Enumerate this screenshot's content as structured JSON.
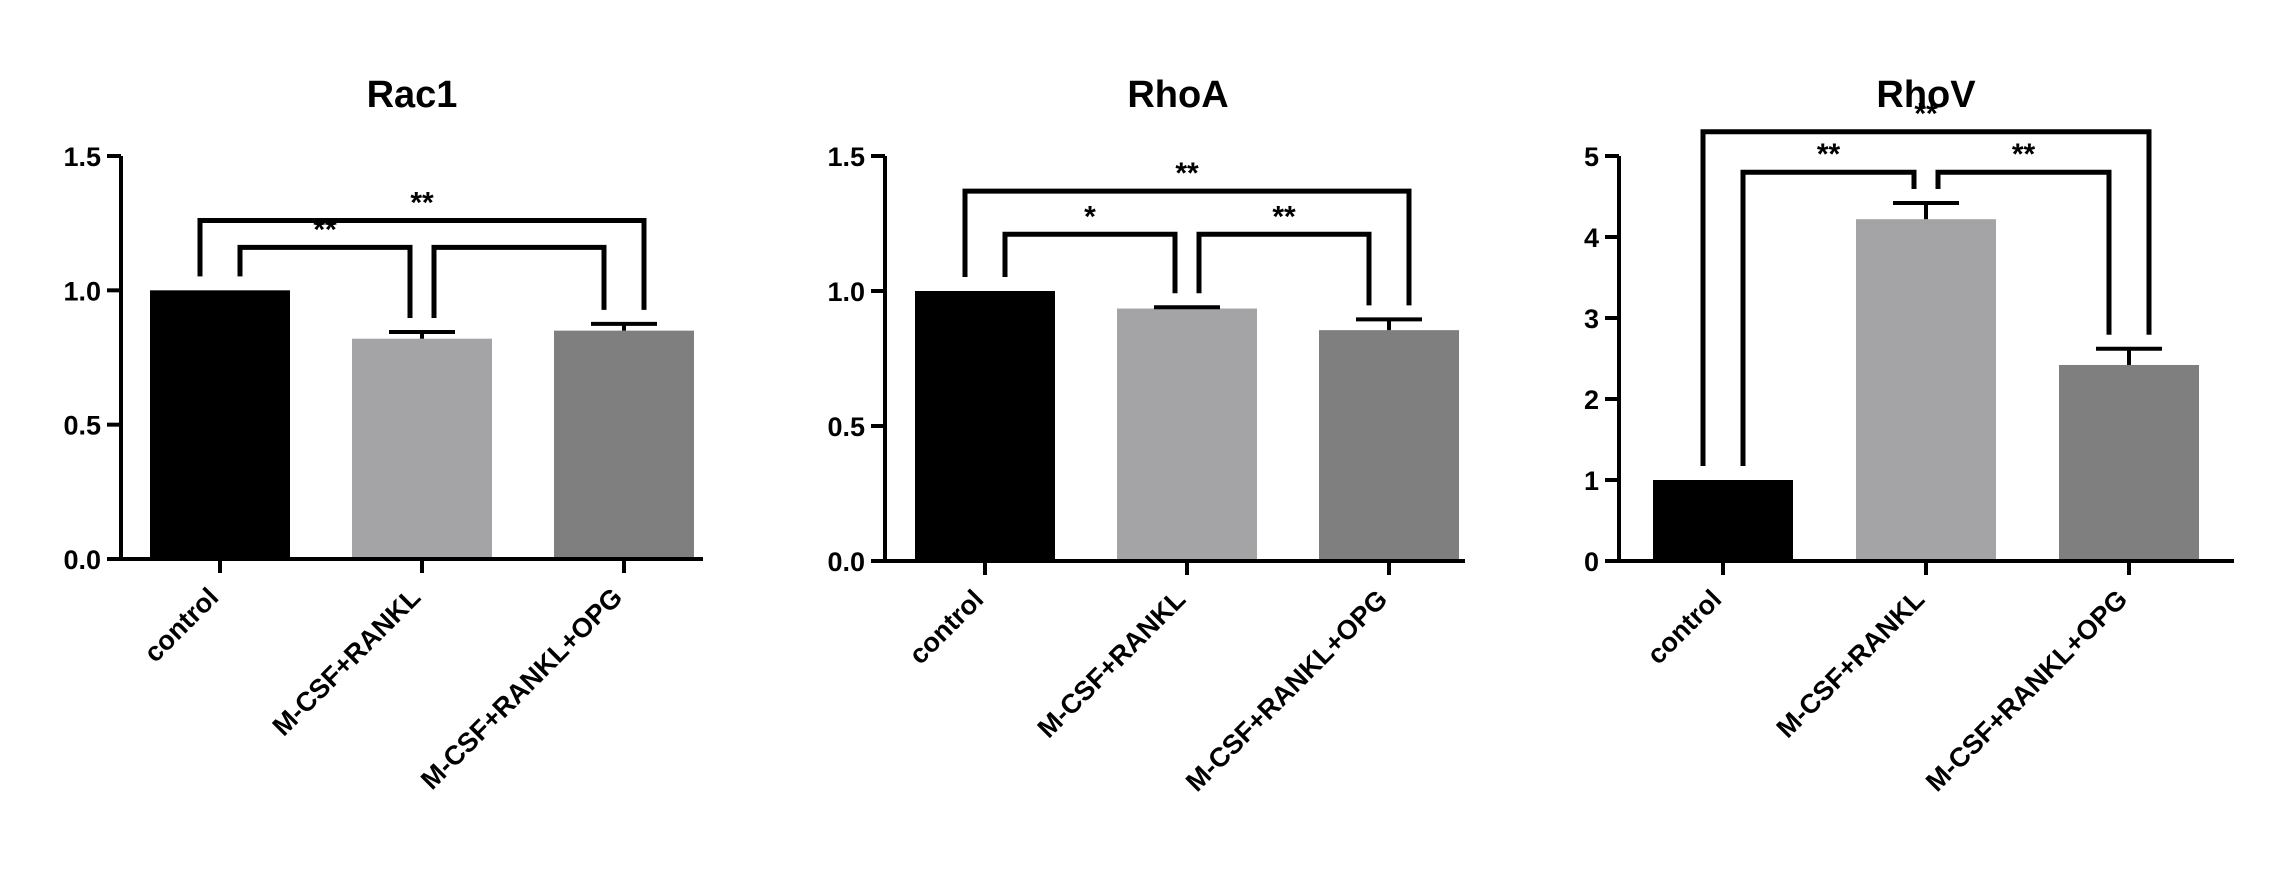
{
  "chart_data": [
    {
      "type": "bar",
      "title": "Rac1",
      "xlabel": "",
      "ylabel": "",
      "categories": [
        "control",
        "M-CSF+RANKL",
        "M-CSF+RANKL+OPG"
      ],
      "values": [
        1.0,
        0.82,
        0.85
      ],
      "errors": [
        0,
        0.025,
        0.025
      ],
      "colors": [
        "#000000",
        "#a4a4a7",
        "#7f7f7f"
      ],
      "ylim": [
        0,
        1.5
      ],
      "yticks": [
        "0.0",
        "0.5",
        "1.0",
        "1.5"
      ],
      "tick_values": [
        0,
        0.5,
        1.0,
        1.5
      ],
      "significance": [
        {
          "from": 0,
          "to": 1,
          "y": 1.16,
          "label": "**"
        },
        {
          "from": 1,
          "to": 2,
          "y": 1.16,
          "label": ""
        },
        {
          "from": 0,
          "to": 2,
          "y": 1.26,
          "label": "**"
        }
      ]
    },
    {
      "type": "bar",
      "title": "RhoA",
      "xlabel": "",
      "ylabel": "",
      "categories": [
        "control",
        "M-CSF+RANKL",
        "M-CSF+RANKL+OPG"
      ],
      "values": [
        1.0,
        0.935,
        0.855
      ],
      "errors": [
        0,
        0.005,
        0.04
      ],
      "colors": [
        "#000000",
        "#a4a4a7",
        "#7f7f7f"
      ],
      "ylim": [
        0,
        1.5
      ],
      "yticks": [
        "0.0",
        "0.5",
        "1.0",
        "1.5"
      ],
      "tick_values": [
        0,
        0.5,
        1.0,
        1.5
      ],
      "significance": [
        {
          "from": 0,
          "to": 1,
          "y": 1.21,
          "label": "*"
        },
        {
          "from": 1,
          "to": 2,
          "y": 1.21,
          "label": "**"
        },
        {
          "from": 0,
          "to": 2,
          "y": 1.37,
          "label": "**"
        }
      ]
    },
    {
      "type": "bar",
      "title": "RhoV",
      "xlabel": "",
      "ylabel": "",
      "categories": [
        "control",
        "M-CSF+RANKL",
        "M-CSF+RANKL+OPG"
      ],
      "values": [
        1.0,
        4.22,
        2.42
      ],
      "errors": [
        0,
        0.2,
        0.2
      ],
      "colors": [
        "#000000",
        "#a4a4a7",
        "#7f7f7f"
      ],
      "ylim": [
        0,
        5
      ],
      "yticks": [
        "0",
        "1",
        "2",
        "3",
        "4",
        "5"
      ],
      "tick_values": [
        0,
        1,
        2,
        3,
        4,
        5
      ],
      "significance": [
        {
          "from": 0,
          "to": 1,
          "y": 4.8,
          "label": "**"
        },
        {
          "from": 1,
          "to": 2,
          "y": 4.8,
          "label": "**"
        },
        {
          "from": 0,
          "to": 2,
          "y": 5.3,
          "label": "**"
        }
      ]
    }
  ]
}
